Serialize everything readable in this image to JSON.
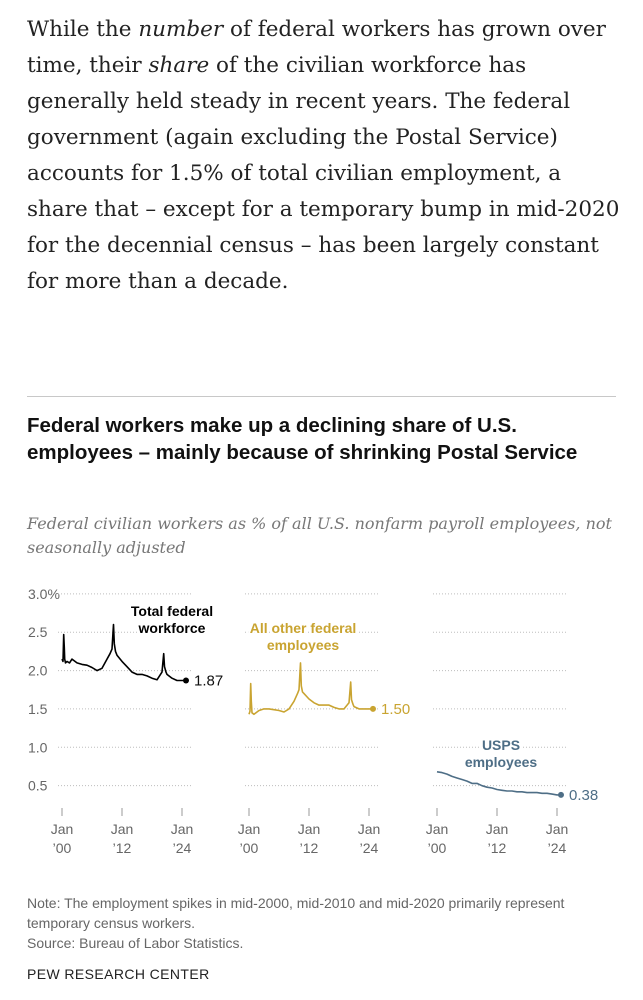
{
  "article": {
    "p1": "While the ",
    "em1": "number",
    "p2": " of federal workers has grown over time, their ",
    "em2": "share",
    "p3": " of the civilian workforce has generally held steady in recent years. The federal government (again excluding the Postal Service) accounts for 1.5% of total civilian employment, a share that – except for a temporary bump in mid-2020 for the decennial census – has been largely constant for more than a decade."
  },
  "figure": {
    "title": "Federal workers make up a declining share of U.S. employees – mainly because of shrinking Postal Service",
    "subtitle": "Federal civilian workers as % of all U.S. nonfarm payroll employees, not seasonally adjusted",
    "note": "Note: The employment spikes in mid-2000, mid-2010 and mid-2020 primarily represent temporary census workers.",
    "source": "Source: Bureau of Labor Statistics.",
    "footer": "PEW RESEARCH CENTER"
  },
  "chart_data": {
    "type": "line",
    "layout": "small-multiples",
    "y_unit": "% of all U.S. nonfarm payroll employees",
    "y_ticks": [
      0.5,
      1.0,
      1.5,
      2.0,
      2.5,
      3.0
    ],
    "y_tick_labels": [
      "0.5",
      "1.0",
      "1.5",
      "2.0",
      "2.5",
      "3.0%"
    ],
    "ylim": [
      0.3,
      3.05
    ],
    "x_range": [
      2000.0,
      2025.0
    ],
    "x_ticks": [
      2000,
      2012,
      2024
    ],
    "x_tick_labels_top": [
      "Jan",
      "Jan",
      "Jan"
    ],
    "x_tick_labels_bottom": [
      "’00",
      "’12",
      "’24"
    ],
    "panels": [
      {
        "name": "Total federal workforce",
        "label_lines": [
          "Total federal",
          "workforce"
        ],
        "color": "#000000",
        "end_label": "1.87",
        "points": [
          [
            2000.0,
            2.15
          ],
          [
            2000.2,
            2.12
          ],
          [
            2000.35,
            2.47
          ],
          [
            2000.45,
            2.3
          ],
          [
            2000.55,
            2.15
          ],
          [
            2000.7,
            2.1
          ],
          [
            2001.0,
            2.12
          ],
          [
            2001.5,
            2.1
          ],
          [
            2002.0,
            2.15
          ],
          [
            2003.0,
            2.1
          ],
          [
            2004.0,
            2.08
          ],
          [
            2005.0,
            2.07
          ],
          [
            2006.0,
            2.04
          ],
          [
            2007.0,
            2.0
          ],
          [
            2008.0,
            2.03
          ],
          [
            2009.0,
            2.15
          ],
          [
            2009.6,
            2.22
          ],
          [
            2010.0,
            2.28
          ],
          [
            2010.3,
            2.6
          ],
          [
            2010.45,
            2.35
          ],
          [
            2010.7,
            2.25
          ],
          [
            2011.0,
            2.2
          ],
          [
            2012.0,
            2.12
          ],
          [
            2013.0,
            2.05
          ],
          [
            2014.0,
            1.98
          ],
          [
            2015.0,
            1.95
          ],
          [
            2016.0,
            1.95
          ],
          [
            2017.0,
            1.93
          ],
          [
            2018.0,
            1.9
          ],
          [
            2019.0,
            1.88
          ],
          [
            2020.0,
            1.98
          ],
          [
            2020.35,
            2.22
          ],
          [
            2020.5,
            2.05
          ],
          [
            2020.8,
            1.98
          ],
          [
            2021.0,
            1.95
          ],
          [
            2022.0,
            1.9
          ],
          [
            2023.0,
            1.87
          ],
          [
            2024.0,
            1.87
          ],
          [
            2024.8,
            1.87
          ]
        ]
      },
      {
        "name": "All other federal employees",
        "label_lines": [
          "All other federal",
          "employees"
        ],
        "color": "#c9a431",
        "end_label": "1.50",
        "points": [
          [
            2000.0,
            1.43
          ],
          [
            2000.2,
            1.47
          ],
          [
            2000.35,
            1.83
          ],
          [
            2000.45,
            1.6
          ],
          [
            2000.6,
            1.45
          ],
          [
            2001.0,
            1.43
          ],
          [
            2002.0,
            1.48
          ],
          [
            2003.0,
            1.5
          ],
          [
            2004.0,
            1.5
          ],
          [
            2005.0,
            1.49
          ],
          [
            2006.0,
            1.48
          ],
          [
            2007.0,
            1.46
          ],
          [
            2008.0,
            1.5
          ],
          [
            2009.0,
            1.6
          ],
          [
            2009.7,
            1.7
          ],
          [
            2010.0,
            1.75
          ],
          [
            2010.3,
            2.1
          ],
          [
            2010.45,
            1.8
          ],
          [
            2010.7,
            1.72
          ],
          [
            2011.0,
            1.7
          ],
          [
            2012.0,
            1.63
          ],
          [
            2013.0,
            1.58
          ],
          [
            2014.0,
            1.55
          ],
          [
            2015.0,
            1.55
          ],
          [
            2016.0,
            1.55
          ],
          [
            2017.0,
            1.52
          ],
          [
            2018.0,
            1.5
          ],
          [
            2019.0,
            1.5
          ],
          [
            2020.0,
            1.58
          ],
          [
            2020.35,
            1.85
          ],
          [
            2020.5,
            1.62
          ],
          [
            2020.8,
            1.56
          ],
          [
            2021.0,
            1.53
          ],
          [
            2022.0,
            1.5
          ],
          [
            2023.0,
            1.5
          ],
          [
            2024.0,
            1.5
          ],
          [
            2024.8,
            1.5
          ]
        ]
      },
      {
        "name": "USPS employees",
        "label_lines": [
          "USPS",
          "employees"
        ],
        "color": "#4e6e86",
        "end_label": "0.38",
        "points": [
          [
            2000.0,
            0.68
          ],
          [
            2001.0,
            0.67
          ],
          [
            2002.0,
            0.65
          ],
          [
            2003.0,
            0.62
          ],
          [
            2004.0,
            0.6
          ],
          [
            2005.0,
            0.58
          ],
          [
            2006.0,
            0.56
          ],
          [
            2007.0,
            0.53
          ],
          [
            2008.0,
            0.53
          ],
          [
            2009.0,
            0.5
          ],
          [
            2010.0,
            0.48
          ],
          [
            2011.0,
            0.47
          ],
          [
            2012.0,
            0.45
          ],
          [
            2013.0,
            0.44
          ],
          [
            2014.0,
            0.43
          ],
          [
            2015.0,
            0.43
          ],
          [
            2016.0,
            0.42
          ],
          [
            2017.0,
            0.42
          ],
          [
            2018.0,
            0.41
          ],
          [
            2019.0,
            0.41
          ],
          [
            2020.0,
            0.41
          ],
          [
            2021.0,
            0.4
          ],
          [
            2022.0,
            0.4
          ],
          [
            2023.0,
            0.39
          ],
          [
            2024.0,
            0.38
          ],
          [
            2024.8,
            0.38
          ]
        ]
      }
    ]
  }
}
